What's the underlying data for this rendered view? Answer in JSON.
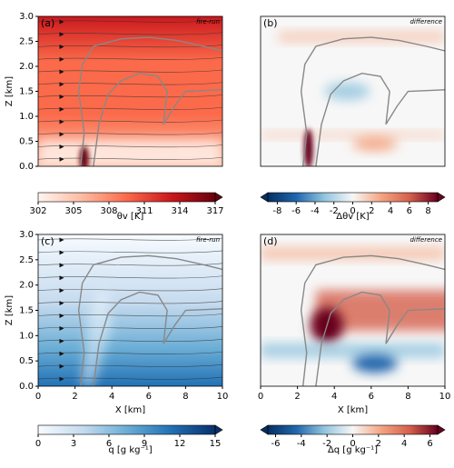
{
  "chart_data": [
    {
      "type": "field",
      "panel_label": "(a)",
      "tag": "fire-run",
      "ylabel": "Z [km]",
      "xlim": [
        0,
        10
      ],
      "ylim": [
        0,
        3
      ],
      "yticks": [
        {
          "value": 0,
          "label": "0.0"
        },
        {
          "value": 0.5,
          "label": "0.5"
        },
        {
          "value": 1,
          "label": "1.0"
        },
        {
          "value": 1.5,
          "label": "1.5"
        },
        {
          "value": 2,
          "label": "2.0"
        },
        {
          "value": 2.5,
          "label": "2.5"
        },
        {
          "value": 3,
          "label": "3.0"
        }
      ],
      "colorbar": {
        "label": "θv [K]",
        "lim": [
          302,
          317
        ],
        "ticks": [
          302,
          305,
          308,
          311,
          314,
          317
        ],
        "extend": "max",
        "colors": [
          "#fff5f0",
          "#fcbba1",
          "#fb6a4a",
          "#cb181d",
          "#67000d"
        ]
      }
    },
    {
      "type": "field",
      "panel_label": "(b)",
      "tag": "difference",
      "xlim": [
        0,
        10
      ],
      "ylim": [
        0,
        3
      ],
      "colorbar": {
        "label": "Δθv [K]",
        "lim": [
          -9,
          9
        ],
        "ticks": [
          -8,
          -6,
          -4,
          -2,
          0,
          2,
          4,
          6,
          8
        ],
        "extend": "both",
        "colors": [
          "#053061",
          "#2166ac",
          "#92c5de",
          "#f7f7f7",
          "#f4a582",
          "#d6604d",
          "#67001f"
        ]
      }
    },
    {
      "type": "field",
      "panel_label": "(c)",
      "tag": "fire-run",
      "ylabel": "Z [km]",
      "xlabel": "X [km]",
      "xlim": [
        0,
        10
      ],
      "ylim": [
        0,
        3
      ],
      "xticks": [
        0,
        2,
        4,
        6,
        8,
        10
      ],
      "yticks": [
        {
          "value": 0,
          "label": "0.0"
        },
        {
          "value": 0.5,
          "label": "0.5"
        },
        {
          "value": 1,
          "label": "1.0"
        },
        {
          "value": 1.5,
          "label": "1.5"
        },
        {
          "value": 2,
          "label": "2.0"
        },
        {
          "value": 2.5,
          "label": "2.5"
        },
        {
          "value": 3,
          "label": "3.0"
        }
      ],
      "colorbar": {
        "label": "q [g kg⁻¹]",
        "lim": [
          0,
          15
        ],
        "ticks": [
          0,
          3,
          6,
          9,
          12,
          15
        ],
        "extend": "max",
        "colors": [
          "#f7fbff",
          "#c6dbef",
          "#6baed6",
          "#2171b5",
          "#08306b"
        ]
      }
    },
    {
      "type": "field",
      "panel_label": "(d)",
      "tag": "difference",
      "xlabel": "X [km]",
      "xlim": [
        0,
        10
      ],
      "ylim": [
        0,
        3
      ],
      "xticks": [
        0,
        2,
        4,
        6,
        8,
        10
      ],
      "colorbar": {
        "label": "Δq [g kg⁻¹]",
        "lim": [
          -6.6,
          6.6
        ],
        "ticks": [
          -6,
          -4,
          -2,
          0,
          2,
          4,
          6
        ],
        "extend": "both",
        "colors": [
          "#053061",
          "#2166ac",
          "#92c5de",
          "#f7f7f7",
          "#f4a582",
          "#d6604d",
          "#67001f"
        ]
      }
    }
  ]
}
